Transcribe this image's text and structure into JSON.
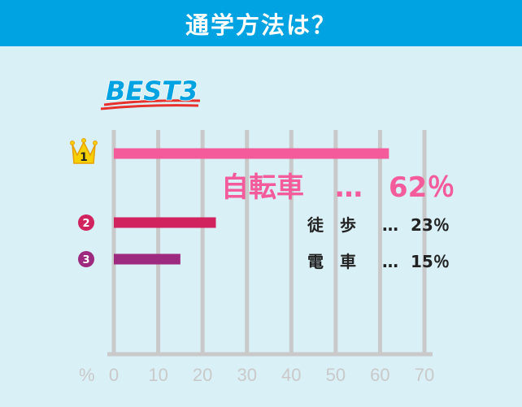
{
  "header": {
    "title": "通学方法は？"
  },
  "badge": {
    "label": "BEST3"
  },
  "chart_data": {
    "type": "bar",
    "orientation": "horizontal",
    "unit": "%",
    "xlim": [
      0,
      70
    ],
    "ticks": [
      0,
      10,
      20,
      30,
      40,
      50,
      60,
      70
    ],
    "grid": true,
    "categories": [
      "自転車",
      "徒歩",
      "電車"
    ],
    "values": [
      62,
      23,
      15
    ],
    "ranks": [
      "1",
      "2",
      "3"
    ],
    "annotations": [
      {
        "label": "自転車",
        "separator": "…",
        "value_text": "62％"
      },
      {
        "label": "徒　歩",
        "separator": "…",
        "value_text": "23％"
      },
      {
        "label": "電　車",
        "separator": "…",
        "value_text": "15％"
      }
    ],
    "colors": [
      "#f45b9a",
      "#d1245f",
      "#9e2a7f"
    ],
    "grid_color": "#c9c9c9"
  }
}
